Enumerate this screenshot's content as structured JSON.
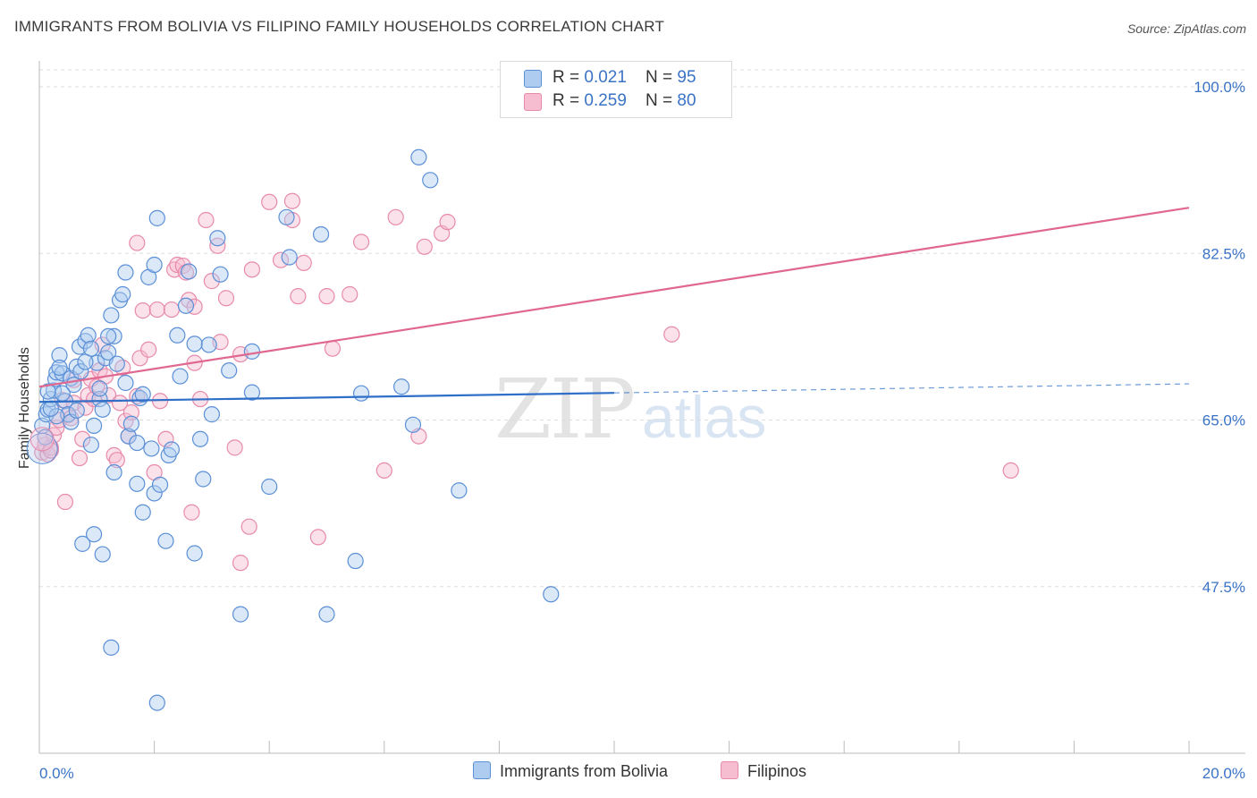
{
  "header": {
    "title": "IMMIGRANTS FROM BOLIVIA VS FILIPINO FAMILY HOUSEHOLDS CORRELATION CHART",
    "source": "Source: ZipAtlas.com"
  },
  "watermark": {
    "zip": "ZIP",
    "atlas": "atlas"
  },
  "legend": {
    "rows": [
      {
        "r_label": "R = ",
        "r_value": "0.021",
        "n_label": "N = ",
        "n_value": "95"
      },
      {
        "r_label": "R = ",
        "r_value": "0.259",
        "n_label": "N = ",
        "n_value": "80"
      }
    ]
  },
  "colors": {
    "blue_fill": "#aecbf0",
    "blue_stroke": "#5b8fd6",
    "blue_line": "#2f6fc7",
    "pink_fill": "#f6bcd0",
    "pink_stroke": "#e78aab",
    "pink_line": "#e0688f",
    "axis_label": "#3a73c6",
    "grid": "#dddddd"
  },
  "chart_data": {
    "type": "scatter",
    "title": "IMMIGRANTS FROM BOLIVIA VS FILIPINO FAMILY HOUSEHOLDS CORRELATION CHART",
    "xlabel": "",
    "ylabel": "Family Households",
    "xlim": [
      0,
      20
    ],
    "ylim": [
      30,
      100
    ],
    "x_tick_labels": [
      "0.0%",
      "20.0%"
    ],
    "y_ticks": [
      47.5,
      65.0,
      82.5,
      100.0
    ],
    "y_tick_labels": [
      "47.5%",
      "65.0%",
      "82.5%",
      "100.0%"
    ],
    "grid": true,
    "legend_position": "top-center",
    "series": [
      {
        "name": "Immigrants from Bolivia",
        "color": "#5b8fd6",
        "R": 0.021,
        "N": 95,
        "trend": {
          "x0": 0,
          "y0": 66.9,
          "x1": 20,
          "y1": 68.8,
          "solid_until_x": 10
        },
        "points": [
          [
            0.05,
            64.4
          ],
          [
            0.1,
            63.2
          ],
          [
            0.12,
            65.6
          ],
          [
            0.15,
            66.1
          ],
          [
            0.2,
            67.2
          ],
          [
            0.25,
            68.1
          ],
          [
            0.28,
            69.3
          ],
          [
            0.3,
            70.0
          ],
          [
            0.35,
            71.8
          ],
          [
            0.4,
            69.9
          ],
          [
            0.45,
            67.0
          ],
          [
            0.5,
            65.6
          ],
          [
            0.55,
            69.4
          ],
          [
            0.6,
            68.7
          ],
          [
            0.65,
            70.6
          ],
          [
            0.7,
            72.7
          ],
          [
            0.72,
            70.1
          ],
          [
            0.8,
            73.3
          ],
          [
            0.85,
            73.9
          ],
          [
            0.9,
            72.5
          ],
          [
            0.95,
            64.4
          ],
          [
            1.0,
            71.0
          ],
          [
            1.05,
            67.2
          ],
          [
            1.1,
            66.1
          ],
          [
            1.15,
            71.5
          ],
          [
            1.2,
            72.1
          ],
          [
            1.25,
            76.0
          ],
          [
            1.3,
            73.8
          ],
          [
            1.35,
            70.9
          ],
          [
            1.4,
            77.6
          ],
          [
            1.45,
            78.2
          ],
          [
            1.5,
            68.9
          ],
          [
            1.55,
            63.3
          ],
          [
            1.6,
            64.6
          ],
          [
            1.7,
            62.6
          ],
          [
            1.75,
            67.3
          ],
          [
            1.8,
            67.7
          ],
          [
            1.9,
            80.0
          ],
          [
            1.95,
            62.0
          ],
          [
            2.0,
            57.3
          ],
          [
            2.05,
            86.2
          ],
          [
            2.1,
            58.2
          ],
          [
            2.2,
            52.3
          ],
          [
            2.25,
            61.3
          ],
          [
            2.3,
            61.9
          ],
          [
            2.4,
            73.9
          ],
          [
            2.45,
            69.6
          ],
          [
            2.55,
            77.0
          ],
          [
            2.6,
            80.6
          ],
          [
            2.7,
            51.0
          ],
          [
            2.8,
            63.0
          ],
          [
            2.85,
            58.8
          ],
          [
            2.95,
            72.9
          ],
          [
            3.0,
            65.6
          ],
          [
            3.1,
            84.1
          ],
          [
            3.15,
            80.3
          ],
          [
            3.3,
            70.2
          ],
          [
            3.5,
            44.6
          ],
          [
            3.7,
            67.9
          ],
          [
            4.0,
            58.0
          ],
          [
            4.3,
            86.3
          ],
          [
            4.35,
            82.1
          ],
          [
            4.9,
            84.5
          ],
          [
            5.0,
            44.6
          ],
          [
            5.5,
            50.2
          ],
          [
            5.6,
            67.8
          ],
          [
            6.3,
            68.5
          ],
          [
            6.5,
            64.5
          ],
          [
            6.6,
            92.6
          ],
          [
            6.8,
            90.2
          ],
          [
            7.3,
            57.6
          ],
          [
            8.9,
            46.7
          ],
          [
            0.75,
            52.0
          ],
          [
            1.1,
            50.9
          ],
          [
            0.95,
            53.0
          ],
          [
            1.25,
            41.1
          ],
          [
            2.05,
            35.3
          ],
          [
            1.8,
            55.3
          ],
          [
            1.7,
            58.3
          ],
          [
            1.3,
            59.5
          ],
          [
            0.9,
            62.4
          ],
          [
            0.4,
            67.8
          ],
          [
            0.55,
            64.8
          ],
          [
            0.65,
            66.0
          ],
          [
            0.3,
            65.4
          ],
          [
            0.2,
            66.2
          ],
          [
            0.15,
            68.0
          ],
          [
            2.7,
            73.0
          ],
          [
            1.2,
            73.8
          ],
          [
            1.5,
            80.5
          ],
          [
            2.0,
            81.3
          ],
          [
            3.7,
            72.2
          ],
          [
            0.35,
            70.5
          ],
          [
            0.8,
            71.1
          ],
          [
            1.05,
            68.3
          ]
        ]
      },
      {
        "name": "Filipinos",
        "color": "#e78aab",
        "R": 0.259,
        "N": 80,
        "trend": {
          "x0": 0,
          "y0": 68.5,
          "x1": 20,
          "y1": 87.3
        },
        "points": [
          [
            0.05,
            61.6
          ],
          [
            0.1,
            62.4
          ],
          [
            0.15,
            61.4
          ],
          [
            0.2,
            62.1
          ],
          [
            0.25,
            63.4
          ],
          [
            0.3,
            64.2
          ],
          [
            0.35,
            65.0
          ],
          [
            0.4,
            67.1
          ],
          [
            0.45,
            56.4
          ],
          [
            0.5,
            65.5
          ],
          [
            0.55,
            65.2
          ],
          [
            0.6,
            66.8
          ],
          [
            0.7,
            61.0
          ],
          [
            0.75,
            63.0
          ],
          [
            0.8,
            66.3
          ],
          [
            0.85,
            67.6
          ],
          [
            0.9,
            69.3
          ],
          [
            0.95,
            67.2
          ],
          [
            1.0,
            68.5
          ],
          [
            1.05,
            70.2
          ],
          [
            1.1,
            72.9
          ],
          [
            1.15,
            69.6
          ],
          [
            1.2,
            67.6
          ],
          [
            1.3,
            61.3
          ],
          [
            1.35,
            60.8
          ],
          [
            1.4,
            66.8
          ],
          [
            1.5,
            64.9
          ],
          [
            1.55,
            63.3
          ],
          [
            1.6,
            65.8
          ],
          [
            1.7,
            67.5
          ],
          [
            1.75,
            71.5
          ],
          [
            1.8,
            76.5
          ],
          [
            1.9,
            72.4
          ],
          [
            2.0,
            59.5
          ],
          [
            2.05,
            76.6
          ],
          [
            2.1,
            67.0
          ],
          [
            2.2,
            63.0
          ],
          [
            2.3,
            76.6
          ],
          [
            2.35,
            80.8
          ],
          [
            2.4,
            81.3
          ],
          [
            2.5,
            81.2
          ],
          [
            2.6,
            77.6
          ],
          [
            2.65,
            55.3
          ],
          [
            2.7,
            76.9
          ],
          [
            2.8,
            67.2
          ],
          [
            2.9,
            86.0
          ],
          [
            3.0,
            79.6
          ],
          [
            3.1,
            83.3
          ],
          [
            3.15,
            73.2
          ],
          [
            3.25,
            77.8
          ],
          [
            3.4,
            62.1
          ],
          [
            3.5,
            71.9
          ],
          [
            3.65,
            53.8
          ],
          [
            3.7,
            80.8
          ],
          [
            4.0,
            87.9
          ],
          [
            4.2,
            81.8
          ],
          [
            4.4,
            86.0
          ],
          [
            4.5,
            78.0
          ],
          [
            4.6,
            81.5
          ],
          [
            4.85,
            52.7
          ],
          [
            5.0,
            78.0
          ],
          [
            5.1,
            72.5
          ],
          [
            5.4,
            78.2
          ],
          [
            5.6,
            83.7
          ],
          [
            6.0,
            59.7
          ],
          [
            6.2,
            86.3
          ],
          [
            6.6,
            63.3
          ],
          [
            6.7,
            83.2
          ],
          [
            7.0,
            84.6
          ],
          [
            7.1,
            85.8
          ],
          [
            11.0,
            74.0
          ],
          [
            16.9,
            59.7
          ],
          [
            1.7,
            83.6
          ],
          [
            3.5,
            50.0
          ],
          [
            2.55,
            80.5
          ],
          [
            4.4,
            88.0
          ],
          [
            2.7,
            71.0
          ],
          [
            1.45,
            70.5
          ],
          [
            0.6,
            69.2
          ],
          [
            0.2,
            61.8
          ]
        ]
      }
    ]
  },
  "x_axis": {
    "left_label": "0.0%",
    "right_label": "20.0%"
  },
  "bottom_legend": {
    "blue_label": "Immigrants from Bolivia",
    "pink_label": "Filipinos"
  }
}
